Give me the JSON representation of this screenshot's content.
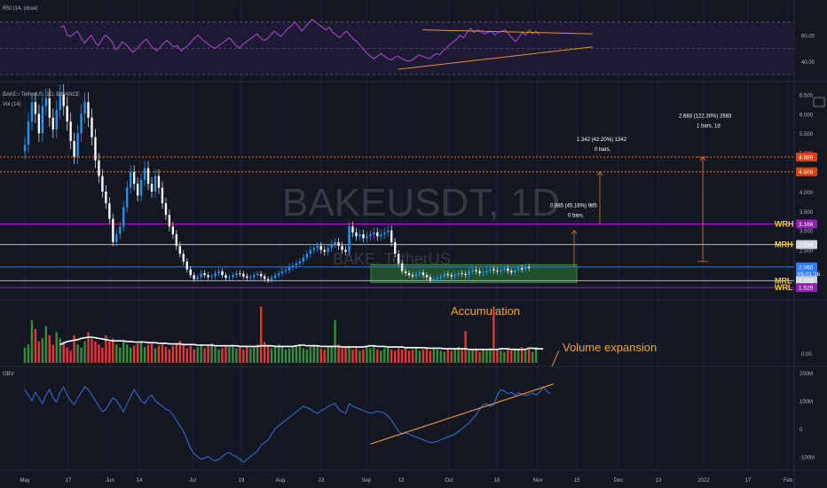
{
  "chart_data": [
    {
      "type": "line",
      "panel": "rsi",
      "indicator_label": "RSI (14, close)",
      "y_ticks": [
        "60.00",
        "40.00"
      ],
      "ylim": [
        30,
        80
      ],
      "bands": {
        "upper": 70,
        "lower": 30,
        "fill": "#1e1a33"
      },
      "series": [
        {
          "color": "#b04cd6",
          "values": [
            66,
            67,
            60,
            59,
            61,
            63,
            58,
            54,
            57,
            60,
            55,
            52,
            56,
            60,
            58,
            55,
            49,
            51,
            55,
            53,
            50,
            47,
            49,
            52,
            55,
            57,
            53,
            50,
            48,
            51,
            54,
            56,
            53,
            51,
            52,
            48,
            50,
            52,
            55,
            58,
            60,
            57,
            55,
            53,
            51,
            50,
            52,
            54,
            56,
            58,
            55,
            52,
            50,
            53,
            55,
            57,
            59,
            61,
            58,
            56,
            57,
            60,
            63,
            61,
            59,
            62,
            65,
            67,
            70,
            67,
            63,
            66,
            69,
            72,
            70,
            68,
            66,
            64,
            66,
            62,
            60,
            58,
            61,
            63,
            60,
            57,
            55,
            52,
            49,
            46,
            44,
            42,
            44,
            46,
            44,
            42,
            41,
            43,
            44,
            42,
            41,
            40,
            41,
            43,
            45,
            44,
            43,
            42,
            44,
            46,
            45,
            48,
            50,
            53,
            55,
            57,
            60,
            58,
            62,
            65,
            62,
            64,
            63,
            61,
            62,
            63,
            60,
            62,
            63,
            64,
            61,
            58,
            55,
            58,
            62,
            60,
            64,
            61,
            63,
            60
          ]
        }
      ],
      "trendlines": [
        {
          "from": [
            105,
            64
          ],
          "to": [
            144,
            61
          ],
          "color": "#e69138"
        },
        {
          "from": [
            98,
            34
          ],
          "to": [
            144,
            51
          ],
          "color": "#e69138"
        }
      ]
    },
    {
      "type": "bar",
      "panel": "price",
      "symbol_label": "BAKE / TetherUS, 1D, BINANCE",
      "volume_label": "Vol (14)",
      "watermark": "BAKEUSDT, 1D",
      "watermark_sub": "BAKE, TetherUS",
      "x_tick_labels": [
        "May",
        "17",
        "Jun",
        "14",
        "Jul",
        "19",
        "Aug",
        "23",
        "Sep",
        "13",
        "Oct",
        "18",
        "Nov",
        "15",
        "Dec",
        "13",
        "2022",
        "17",
        "Feb"
      ],
      "y_ticks": [
        "6.500",
        "6.000",
        "5.500",
        "5.000",
        "4.500",
        "4.000",
        "3.500",
        "3.000",
        "2.500",
        "2.000",
        "1.500"
      ],
      "ylim": [
        1.35,
        6.6
      ],
      "series": [
        {
          "name": "BAKE/USDT",
          "close": [
            5.2,
            5.8,
            6.3,
            6.0,
            5.5,
            6.2,
            6.4,
            5.9,
            5.6,
            6.1,
            6.5,
            6.2,
            5.8,
            5.3,
            4.9,
            5.5,
            6.0,
            6.3,
            5.9,
            5.4,
            4.8,
            4.4,
            4.0,
            3.7,
            3.3,
            2.7,
            2.9,
            3.1,
            3.6,
            4.1,
            4.5,
            4.2,
            3.9,
            4.3,
            4.6,
            4.2,
            4.0,
            4.4,
            4.1,
            3.7,
            3.4,
            3.1,
            2.9,
            2.6,
            2.4,
            2.2,
            2.0,
            1.85,
            1.75,
            1.8,
            1.9,
            1.85,
            1.8,
            1.82,
            1.9,
            1.95,
            1.85,
            1.78,
            1.8,
            1.85,
            1.9,
            1.88,
            1.82,
            1.78,
            1.8,
            1.85,
            1.88,
            1.82,
            1.75,
            1.72,
            1.78,
            1.85,
            1.9,
            1.95,
            1.98,
            2.05,
            2.1,
            2.15,
            2.2,
            2.3,
            2.4,
            2.5,
            2.55,
            2.6,
            2.5,
            2.45,
            2.55,
            2.65,
            2.7,
            2.6,
            2.5,
            2.45,
            3.1,
            2.95,
            2.85,
            2.9,
            2.8,
            2.85,
            2.9,
            2.95,
            2.85,
            2.9,
            2.95,
            3.0,
            2.7,
            2.4,
            2.15,
            1.95,
            1.9,
            1.85,
            1.82,
            1.88,
            1.92,
            1.85,
            1.8,
            1.72,
            1.75,
            1.78,
            1.82,
            1.88,
            1.85,
            1.82,
            1.86,
            1.9,
            1.88,
            1.85,
            1.95,
            1.98,
            1.95,
            1.9,
            1.92,
            1.96,
            2.0,
            1.97,
            1.95,
            1.99,
            2.02,
            1.96,
            1.92,
            1.98,
            2.03,
            2.0,
            2.06,
            2.04
          ],
          "color_up": "#2196f3",
          "color_down": "#5b9cf5"
        }
      ],
      "horizontal_levels": [
        {
          "value": 4.889,
          "badge": "4.889",
          "color": "#e0732a",
          "style": "dotted"
        },
        {
          "value": 4.509,
          "badge": "4.509",
          "color": "#e0732a",
          "style": "dotted"
        },
        {
          "value": 3.166,
          "label": "WRH",
          "badge": "3.166",
          "color": "#9c27b0"
        },
        {
          "value": 2.638,
          "label": "MRH",
          "badge": "2.638",
          "color": "#b2b5be"
        },
        {
          "value": 2.06,
          "badge": "2.060",
          "badge_sub": "05:01:16",
          "color": "#3179f5"
        },
        {
          "value": 1.708,
          "label": "MRL",
          "badge": "1.708",
          "color": "#b2b5be"
        },
        {
          "value": 1.529,
          "label": "WRL",
          "badge": "1.529",
          "color": "#9c27b0"
        }
      ],
      "annotations": [
        {
          "text": "Accumulation",
          "color": "#f5a623"
        },
        {
          "text": "0.985 (45.16%) 985",
          "sub": "0 bars,"
        },
        {
          "text": "1.342 (42.20%) 1342",
          "sub": "0 bars,"
        },
        {
          "text": "2.683 (122.30%) 2683",
          "sub": "1 bars, 1d"
        }
      ],
      "accumulation_range": {
        "x_start": 104,
        "x_end": 162,
        "y_low": 1.66,
        "y_high": 2.12,
        "fill": "#2e7d32"
      }
    },
    {
      "type": "bar",
      "panel": "volume",
      "annotation": "Volume expansion",
      "y_ticks": [
        "0.00"
      ],
      "ylim": [
        0,
        100
      ],
      "series": [
        {
          "name": "Volume",
          "values": [
            25,
            30,
            70,
            55,
            35,
            40,
            60,
            45,
            30,
            50,
            40,
            35,
            25,
            20,
            45,
            30,
            25,
            35,
            50,
            40,
            35,
            30,
            25,
            45,
            35,
            40,
            30,
            25,
            35,
            30,
            25,
            28,
            32,
            36,
            26,
            30,
            34,
            24,
            28,
            30,
            26,
            22,
            28,
            32,
            36,
            30,
            24,
            28,
            22,
            26,
            30,
            24,
            28,
            32,
            26,
            22,
            24,
            28,
            26,
            30,
            24,
            26,
            22,
            28,
            24,
            26,
            30,
            92,
            34,
            28,
            24,
            26,
            30,
            28,
            22,
            24,
            26,
            28,
            30,
            24,
            22,
            26,
            30,
            28,
            24,
            22,
            26,
            28,
            70,
            30,
            24,
            26,
            28,
            22,
            24,
            20,
            22,
            26,
            24,
            28,
            22,
            20,
            24,
            26,
            22,
            20,
            24,
            22,
            26,
            20,
            22,
            24,
            20,
            22,
            26,
            20,
            24,
            22,
            20,
            18,
            22,
            20,
            24,
            26,
            22,
            52,
            20,
            22,
            24,
            18,
            22,
            20,
            24,
            90,
            22,
            20,
            18,
            22,
            20,
            24,
            22,
            26,
            20,
            22,
            18,
            26
          ],
          "color_up": "#388e3c",
          "color_down": "#e53935"
        },
        {
          "name": "MA",
          "values": [
            30,
            32,
            35,
            36,
            37,
            38,
            40,
            41,
            42,
            42,
            41,
            40,
            39,
            38,
            37,
            36,
            36,
            36,
            36,
            35,
            35,
            34,
            34,
            34,
            34,
            33,
            33,
            33,
            32,
            32,
            32,
            31,
            31,
            31,
            31,
            30,
            30,
            30,
            30,
            29,
            29,
            29,
            29,
            29,
            28,
            28,
            28,
            28,
            28,
            28,
            28,
            27,
            27,
            27,
            27,
            27,
            27,
            28,
            28,
            28,
            28,
            27,
            27,
            27,
            27,
            27,
            27,
            28,
            29,
            29,
            28,
            28,
            28,
            28,
            27,
            27,
            27,
            27,
            27,
            27,
            26,
            26,
            26,
            26,
            26,
            26,
            26,
            27,
            28,
            28,
            27,
            27,
            27,
            26,
            26,
            26,
            26,
            26,
            25,
            25,
            25,
            25,
            25,
            25,
            24,
            24,
            24,
            24,
            24,
            23,
            23,
            23,
            23,
            23,
            23,
            23,
            22,
            22,
            22,
            22,
            22,
            22,
            22,
            22,
            22,
            23,
            23,
            23,
            22,
            22,
            22,
            22,
            22,
            24,
            24,
            23,
            23,
            23,
            22,
            22,
            22,
            22,
            22,
            22,
            22,
            22
          ],
          "color": "#ffffff"
        }
      ]
    },
    {
      "type": "line",
      "panel": "obv",
      "indicator_label": "OBV",
      "y_ticks": [
        "200M",
        "100M",
        "0",
        "-100M"
      ],
      "ylim": [
        -130,
        210
      ],
      "series": [
        {
          "name": "OBV",
          "color": "#3f6ddb",
          "values": [
            140,
            120,
            100,
            130,
            110,
            90,
            120,
            140,
            110,
            95,
            130,
            150,
            120,
            100,
            85,
            110,
            130,
            150,
            140,
            120,
            100,
            80,
            60,
            70,
            90,
            110,
            100,
            80,
            60,
            90,
            115,
            140,
            120,
            100,
            90,
            110,
            120,
            100,
            90,
            80,
            70,
            65,
            50,
            30,
            10,
            -10,
            -40,
            -70,
            -90,
            -100,
            -110,
            -105,
            -100,
            -110,
            -115,
            -110,
            -100,
            -90,
            -85,
            -95,
            -100,
            -110,
            -120,
            -110,
            -100,
            -90,
            -80,
            -60,
            -50,
            -40,
            -20,
            0,
            10,
            20,
            30,
            40,
            50,
            60,
            70,
            80,
            75,
            70,
            60,
            55,
            65,
            70,
            80,
            85,
            90,
            70,
            60,
            55,
            90,
            80,
            75,
            70,
            65,
            60,
            55,
            58,
            62,
            60,
            55,
            45,
            30,
            10,
            -10,
            -20,
            -15,
            -20,
            -25,
            -30,
            -35,
            -40,
            -45,
            -50,
            -48,
            -45,
            -40,
            -35,
            -30,
            -25,
            -20,
            -10,
            0,
            10,
            20,
            35,
            50,
            70,
            85,
            90,
            80,
            85,
            120,
            140,
            135,
            125,
            130,
            120,
            128,
            125,
            118,
            122,
            128,
            120,
            130,
            150,
            135,
            125
          ]
        }
      ],
      "trendlines": [
        {
          "from": [
            98,
            -55
          ],
          "to": [
            150,
            160
          ],
          "color": "#e69138"
        }
      ]
    }
  ],
  "colors": {
    "background": "#131722",
    "grid": "#1f2330",
    "text": "#b2b5be"
  }
}
